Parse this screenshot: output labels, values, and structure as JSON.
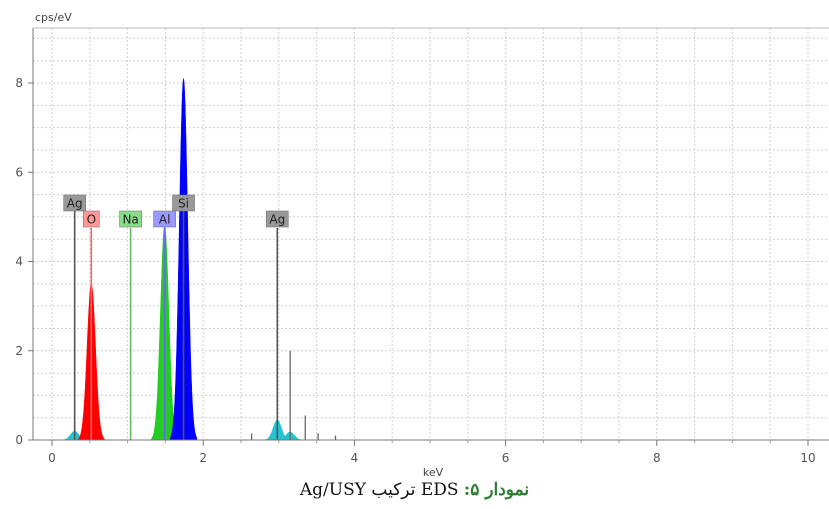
{
  "chart_data": {
    "type": "line",
    "ylabel": "cps/eV",
    "xlabel": "keV",
    "xlim": [
      0,
      10
    ],
    "ylim": [
      0,
      9.2
    ],
    "x_ticks": [
      "0",
      "2",
      "4",
      "6",
      "8",
      "10"
    ],
    "y_ticks": [
      "0",
      "2",
      "4",
      "6",
      "8"
    ],
    "grid": true,
    "peaks": [
      {
        "element": "Ag",
        "energy": 0.3,
        "height": 0.2,
        "color": "#22c4d4"
      },
      {
        "element": "O",
        "energy": 0.52,
        "height": 3.5,
        "color": "#ff0000"
      },
      {
        "element": "Al",
        "energy": 1.49,
        "height": 4.8,
        "color": "#22cc22"
      },
      {
        "element": "Si",
        "energy": 1.74,
        "height": 8.1,
        "color": "#0000ff"
      },
      {
        "element": "Ag",
        "energy": 2.98,
        "height": 0.45,
        "color": "#22c4d4"
      },
      {
        "element": "Ag",
        "energy": 3.15,
        "height": 0.18,
        "color": "#22c4d4"
      }
    ],
    "markers": [
      {
        "label": "Ag",
        "energy": 0.3,
        "height": 4.6,
        "line_color": "#555555",
        "box_color": "#999999",
        "row": "upper"
      },
      {
        "label": "O",
        "energy": 0.52,
        "height": 4.6,
        "line_color": "#ee6666",
        "box_color": "#ff9999",
        "row": "lower"
      },
      {
        "label": "Na",
        "energy": 1.04,
        "height": 4.6,
        "line_color": "#66bb66",
        "box_color": "#88dd88",
        "row": "lower"
      },
      {
        "label": "Al",
        "energy": 1.49,
        "height": 4.6,
        "line_color": "#6666ee",
        "box_color": "#9999ff",
        "row": "lower"
      },
      {
        "label": "Si",
        "energy": 1.74,
        "height": 4.6,
        "line_color": "#555555",
        "box_color": "#999999",
        "row": "upper"
      },
      {
        "label": "Ag",
        "energy": 2.98,
        "height": 4.6,
        "line_color": "#555555",
        "box_color": "#999999",
        "row": "lower"
      }
    ],
    "gray_lines": [
      {
        "energy": 2.64,
        "height": 0.15
      },
      {
        "energy": 3.15,
        "height": 2.0
      },
      {
        "energy": 3.35,
        "height": 0.55
      },
      {
        "energy": 3.52,
        "height": 0.15
      },
      {
        "energy": 3.75,
        "height": 0.1
      }
    ]
  },
  "caption": {
    "lead": "نمودار ۵:",
    "text": "EDS ترکیب Ag/USY"
  }
}
